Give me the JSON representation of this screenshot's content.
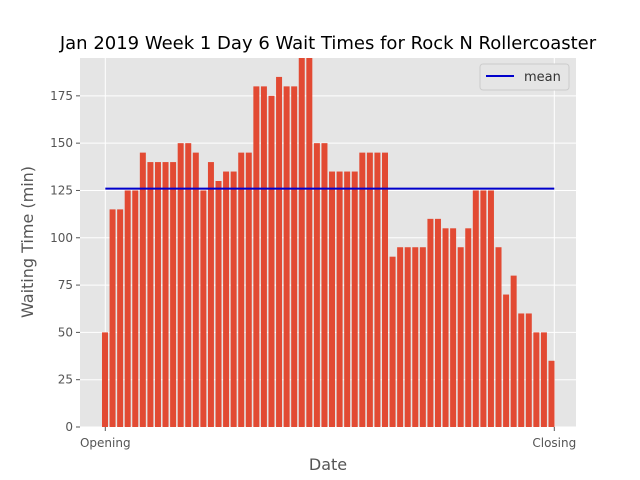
{
  "chart_data": {
    "type": "bar",
    "title": "Jan 2019 Week 1 Day 6 Wait Times for Rock N Rollercoaster",
    "xlabel": "Date",
    "ylabel": "Waiting Time (min)",
    "x_tick_labels": [
      "Opening",
      "Closing"
    ],
    "y_ticks": [
      0,
      25,
      50,
      75,
      100,
      125,
      150,
      175
    ],
    "ylim": [
      0,
      195
    ],
    "grid": true,
    "legend": {
      "placement": "top-right",
      "entries": [
        {
          "label": "mean",
          "color": "#0000cc"
        }
      ]
    },
    "mean": 126,
    "bar_color": "#e24a33",
    "values": [
      50,
      115,
      115,
      125,
      125,
      145,
      140,
      140,
      140,
      140,
      150,
      150,
      145,
      125,
      140,
      130,
      135,
      135,
      145,
      145,
      180,
      180,
      175,
      185,
      180,
      180,
      195,
      195,
      150,
      150,
      135,
      135,
      135,
      135,
      145,
      145,
      145,
      145,
      90,
      95,
      95,
      95,
      95,
      110,
      110,
      105,
      105,
      95,
      105,
      125,
      125,
      125,
      95,
      70,
      80,
      60,
      60,
      50,
      50,
      35
    ]
  }
}
